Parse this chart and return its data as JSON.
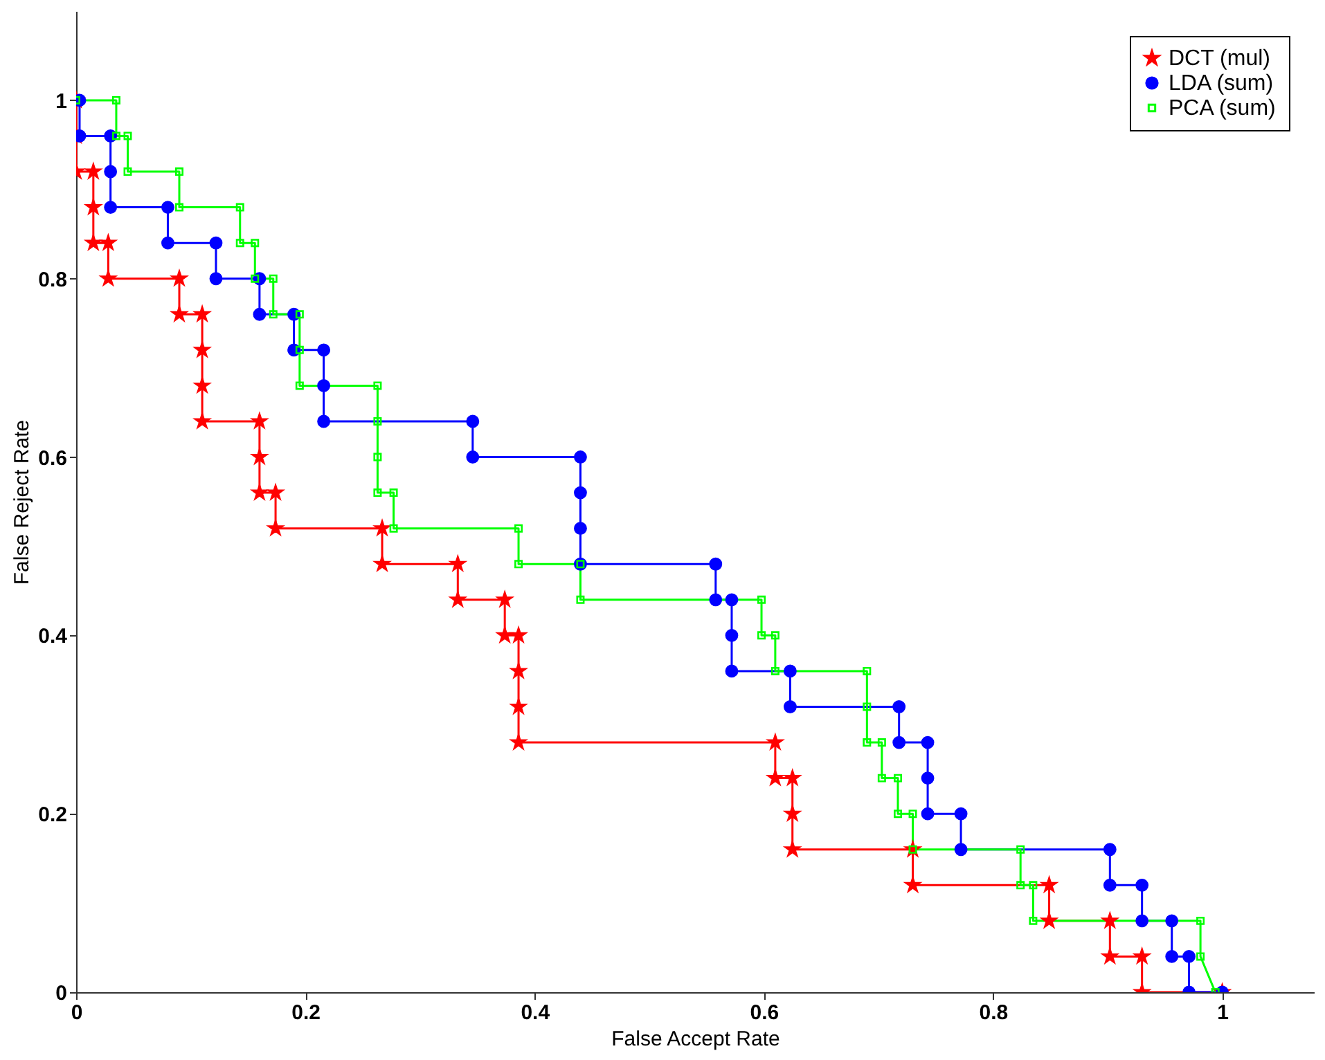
{
  "chart_data": {
    "type": "line",
    "xlabel": "False Accept Rate",
    "ylabel": "False Reject Rate",
    "xlim": [
      0,
      1.08
    ],
    "ylim": [
      0,
      1.1
    ],
    "xticks": [
      0,
      0.2,
      0.4,
      0.6,
      0.8,
      1
    ],
    "yticks": [
      0,
      0.2,
      0.4,
      0.6,
      0.8,
      1
    ],
    "grid": false,
    "legend": "top right",
    "series": [
      {
        "name": "DCT (mul)",
        "color": "#ff0000",
        "marker": "star",
        "line_style": "solid",
        "x": [
          0,
          0,
          0,
          0.015,
          0.015,
          0.015,
          0.028,
          0.028,
          0.09,
          0.09,
          0.11,
          0.11,
          0.11,
          0.11,
          0.16,
          0.16,
          0.16,
          0.174,
          0.174,
          0.267,
          0.267,
          0.333,
          0.333,
          0.374,
          0.374,
          0.386,
          0.386,
          0.386,
          0.386,
          0.61,
          0.61,
          0.625,
          0.625,
          0.625,
          0.73,
          0.73,
          0.849,
          0.849,
          0.902,
          0.902,
          0.93,
          0.93,
          1.0
        ],
        "values": [
          1,
          0.96,
          0.92,
          0.92,
          0.88,
          0.84,
          0.84,
          0.8,
          0.8,
          0.76,
          0.76,
          0.72,
          0.68,
          0.64,
          0.64,
          0.6,
          0.56,
          0.56,
          0.52,
          0.52,
          0.48,
          0.48,
          0.44,
          0.44,
          0.4,
          0.4,
          0.36,
          0.32,
          0.28,
          0.28,
          0.24,
          0.24,
          0.2,
          0.16,
          0.16,
          0.12,
          0.12,
          0.08,
          0.08,
          0.04,
          0.04,
          0,
          0
        ]
      },
      {
        "name": "LDA (sum)",
        "color": "#0000ff",
        "marker": "circle",
        "line_style": "solid",
        "x": [
          0.003,
          0.003,
          0.03,
          0.03,
          0.03,
          0.08,
          0.08,
          0.122,
          0.122,
          0.16,
          0.16,
          0.19,
          0.19,
          0.216,
          0.216,
          0.216,
          0.346,
          0.346,
          0.44,
          0.44,
          0.44,
          0.44,
          0.558,
          0.558,
          0.572,
          0.572,
          0.572,
          0.623,
          0.623,
          0.718,
          0.718,
          0.743,
          0.743,
          0.743,
          0.772,
          0.772,
          0.902,
          0.902,
          0.93,
          0.93,
          0.956,
          0.956,
          0.971,
          0.971,
          1.0
        ],
        "values": [
          1,
          0.96,
          0.96,
          0.92,
          0.88,
          0.88,
          0.84,
          0.84,
          0.8,
          0.8,
          0.76,
          0.76,
          0.72,
          0.72,
          0.68,
          0.64,
          0.64,
          0.6,
          0.6,
          0.56,
          0.52,
          0.48,
          0.48,
          0.44,
          0.44,
          0.4,
          0.36,
          0.36,
          0.32,
          0.32,
          0.28,
          0.28,
          0.24,
          0.2,
          0.2,
          0.16,
          0.16,
          0.12,
          0.12,
          0.08,
          0.08,
          0.04,
          0.04,
          0,
          0
        ]
      },
      {
        "name": "PCA (sum)",
        "color": "#00ff00",
        "marker": "square",
        "line_style": "solid",
        "x": [
          0,
          0.035,
          0.035,
          0.045,
          0.045,
          0.09,
          0.09,
          0.143,
          0.143,
          0.156,
          0.156,
          0.172,
          0.172,
          0.195,
          0.195,
          0.195,
          0.263,
          0.263,
          0.263,
          0.263,
          0.277,
          0.277,
          0.386,
          0.386,
          0.44,
          0.44,
          0.598,
          0.598,
          0.61,
          0.61,
          0.69,
          0.69,
          0.69,
          0.703,
          0.703,
          0.717,
          0.717,
          0.73,
          0.73,
          0.824,
          0.824,
          0.835,
          0.835,
          0.981,
          0.981,
          0.994
        ],
        "values": [
          1,
          1,
          0.96,
          0.96,
          0.92,
          0.92,
          0.88,
          0.88,
          0.84,
          0.84,
          0.8,
          0.8,
          0.76,
          0.76,
          0.72,
          0.68,
          0.68,
          0.64,
          0.6,
          0.56,
          0.56,
          0.52,
          0.52,
          0.48,
          0.48,
          0.44,
          0.44,
          0.4,
          0.4,
          0.36,
          0.36,
          0.32,
          0.28,
          0.28,
          0.24,
          0.24,
          0.2,
          0.2,
          0.16,
          0.16,
          0.12,
          0.12,
          0.08,
          0.08,
          0.04,
          0
        ]
      }
    ]
  }
}
